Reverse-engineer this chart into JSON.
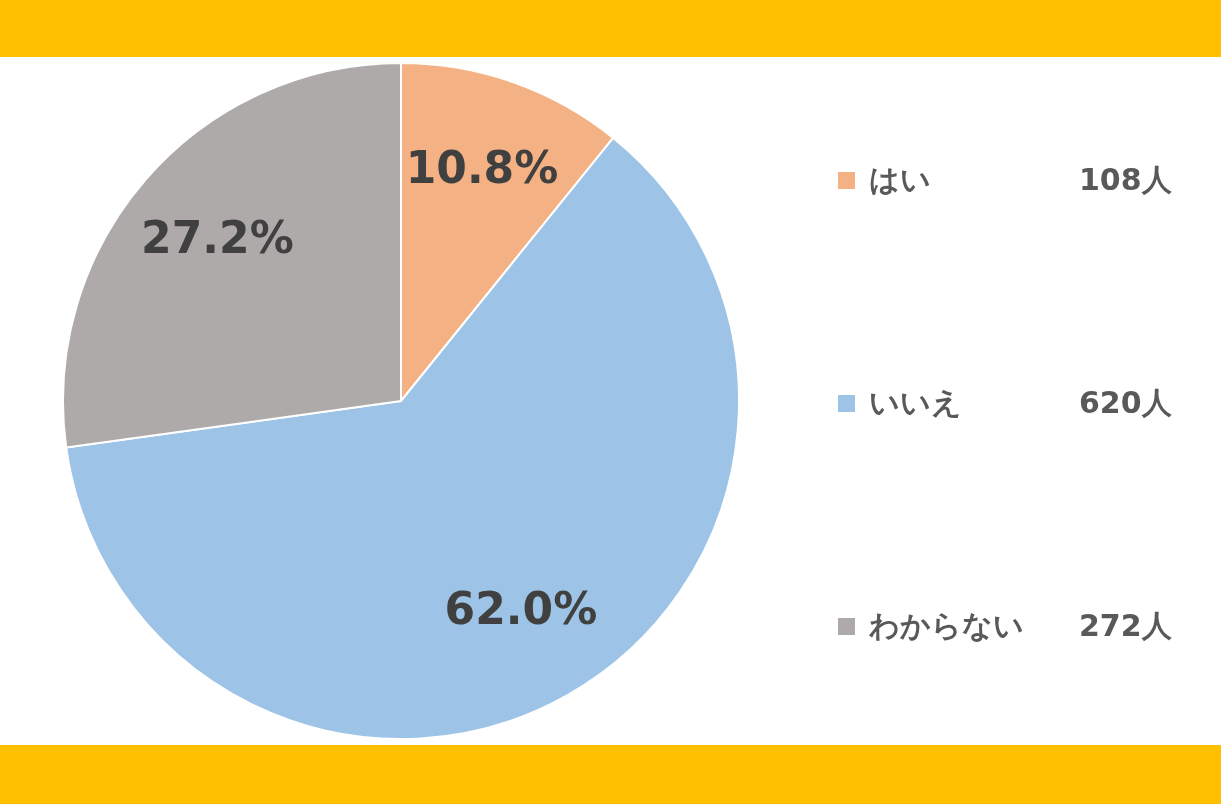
{
  "chart_data": {
    "type": "pie",
    "categories": [
      "はい",
      "いいえ",
      "わからない"
    ],
    "values": [
      10.8,
      62.0,
      27.2
    ],
    "colors": [
      "#f4b183",
      "#9dc3e6",
      "#aeaaaa"
    ],
    "value_labels": [
      "10.8%",
      "62.0%",
      "27.2%"
    ],
    "legend": "right",
    "annotations": [
      "108人",
      "620人",
      "272人"
    ]
  }
}
